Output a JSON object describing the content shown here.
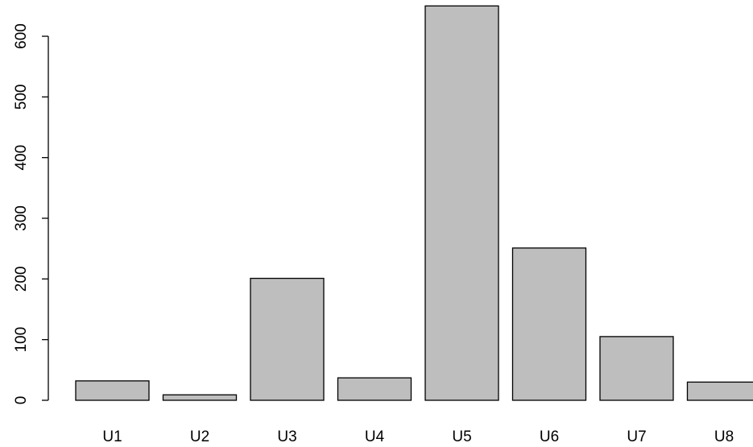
{
  "chart_data": {
    "type": "bar",
    "categories": [
      "U1",
      "U2",
      "U3",
      "U4",
      "U5",
      "U6",
      "U7",
      "U8"
    ],
    "values": [
      32,
      9,
      201,
      37,
      650,
      251,
      105,
      30
    ],
    "title": "",
    "xlabel": "",
    "ylabel": "",
    "ylim": [
      0,
      650
    ],
    "yticks": [
      0,
      100,
      200,
      300,
      400,
      500,
      600
    ],
    "ytick_labels": [
      "0",
      "100",
      "200",
      "300",
      "400",
      "500",
      "600"
    ],
    "bar_color": "#bebebe",
    "border_color": "#000000",
    "background": "#ffffff",
    "grid": false,
    "legend": "none"
  }
}
